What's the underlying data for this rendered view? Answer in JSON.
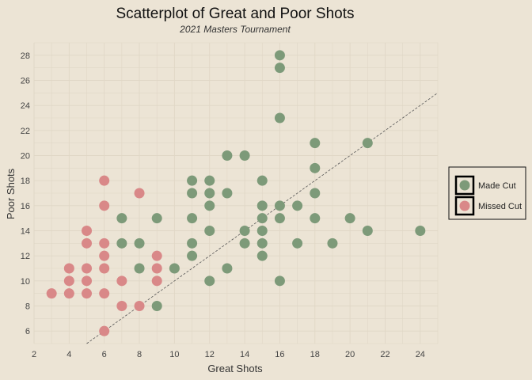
{
  "chart_data": {
    "type": "scatter",
    "title": "Scatterplot of Great and Poor Shots",
    "subtitle": "2021 Masters Tournament",
    "xlabel": "Great Shots",
    "ylabel": "Poor Shots",
    "xlim": [
      2,
      25
    ],
    "ylim": [
      5,
      29
    ],
    "xticks": [
      2,
      4,
      6,
      8,
      10,
      12,
      14,
      16,
      18,
      20,
      22,
      24
    ],
    "yticks": [
      6,
      8,
      10,
      12,
      14,
      16,
      18,
      20,
      22,
      24,
      26,
      28
    ],
    "grid": true,
    "legend_position": "right",
    "reference_line": {
      "style": "dashed",
      "x": [
        5,
        25
      ],
      "y": [
        5,
        25
      ]
    },
    "series": [
      {
        "name": "Made Cut",
        "color": "#7d9a79",
        "points": [
          [
            7,
            15
          ],
          [
            7,
            13
          ],
          [
            8,
            13
          ],
          [
            8,
            11
          ],
          [
            9,
            15
          ],
          [
            9,
            8
          ],
          [
            10,
            11
          ],
          [
            11,
            18
          ],
          [
            11,
            17
          ],
          [
            11,
            15
          ],
          [
            11,
            13
          ],
          [
            11,
            12
          ],
          [
            12,
            18
          ],
          [
            12,
            17
          ],
          [
            12,
            16
          ],
          [
            12,
            14
          ],
          [
            12,
            10
          ],
          [
            13,
            20
          ],
          [
            13,
            17
          ],
          [
            13,
            11
          ],
          [
            14,
            20
          ],
          [
            14,
            14
          ],
          [
            14,
            13
          ],
          [
            15,
            18
          ],
          [
            15,
            16
          ],
          [
            15,
            15
          ],
          [
            15,
            14
          ],
          [
            15,
            13
          ],
          [
            15,
            12
          ],
          [
            16,
            28
          ],
          [
            16,
            27
          ],
          [
            16,
            23
          ],
          [
            16,
            16
          ],
          [
            16,
            15
          ],
          [
            16,
            10
          ],
          [
            17,
            16
          ],
          [
            17,
            13
          ],
          [
            18,
            21
          ],
          [
            18,
            19
          ],
          [
            18,
            17
          ],
          [
            18,
            15
          ],
          [
            19,
            13
          ],
          [
            20,
            15
          ],
          [
            21,
            21
          ],
          [
            21,
            14
          ],
          [
            24,
            14
          ]
        ]
      },
      {
        "name": "Missed Cut",
        "color": "#d98888",
        "points": [
          [
            3,
            9
          ],
          [
            4,
            11
          ],
          [
            4,
            10
          ],
          [
            4,
            9
          ],
          [
            5,
            14
          ],
          [
            5,
            13
          ],
          [
            5,
            11
          ],
          [
            5,
            10
          ],
          [
            5,
            9
          ],
          [
            6,
            18
          ],
          [
            6,
            16
          ],
          [
            6,
            13
          ],
          [
            6,
            12
          ],
          [
            6,
            11
          ],
          [
            6,
            9
          ],
          [
            6,
            6
          ],
          [
            7,
            10
          ],
          [
            7,
            8
          ],
          [
            8,
            17
          ],
          [
            8,
            8
          ],
          [
            9,
            12
          ],
          [
            9,
            11
          ],
          [
            9,
            10
          ]
        ]
      }
    ]
  }
}
